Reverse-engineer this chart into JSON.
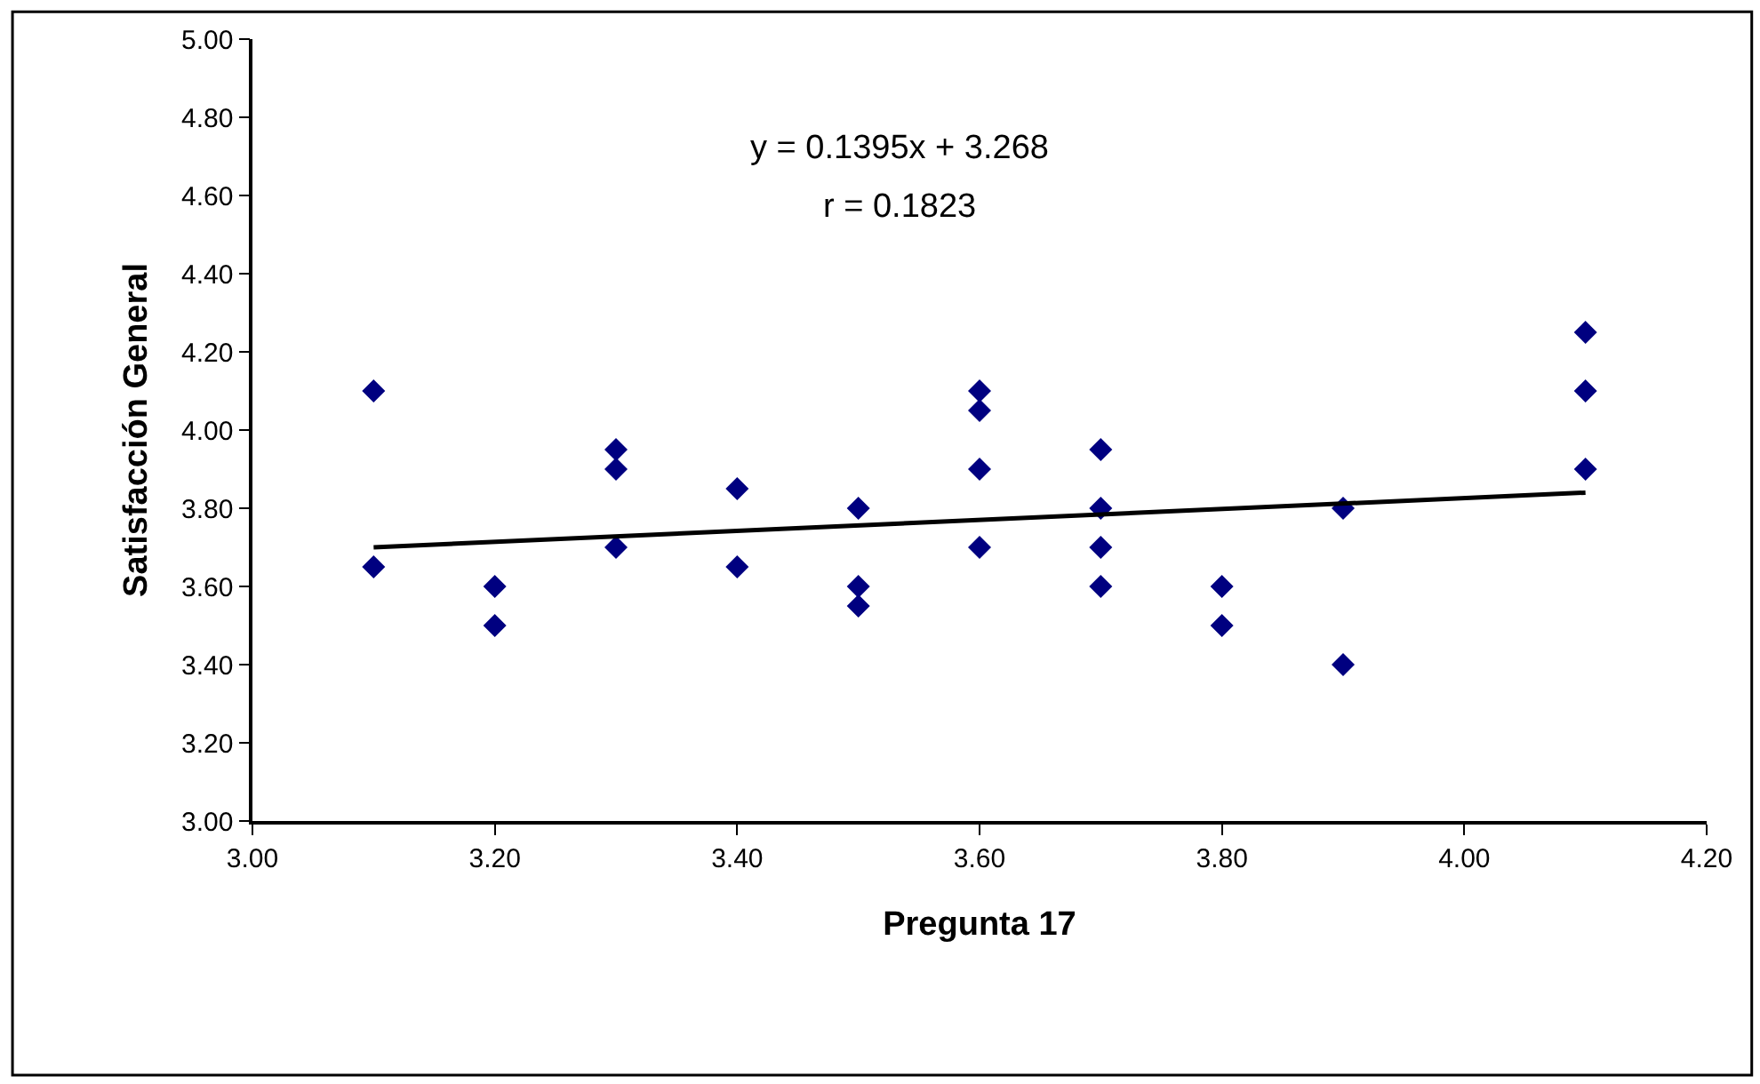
{
  "chart_data": {
    "type": "scatter",
    "xlabel": "Pregunta 17",
    "ylabel": "Satisfacción General",
    "annotations": [
      "y = 0.1395x + 3.268",
      "r = 0.1823"
    ],
    "series": [
      {
        "color": "#000080",
        "marker": "diamond",
        "x": [
          3.1,
          3.1,
          3.2,
          3.2,
          3.3,
          3.3,
          3.3,
          3.4,
          3.4,
          3.5,
          3.5,
          3.5,
          3.6,
          3.6,
          3.6,
          3.6,
          3.7,
          3.7,
          3.7,
          3.7,
          3.8,
          3.8,
          3.9,
          3.9,
          4.1,
          4.1,
          4.1
        ],
        "values": [
          4.1,
          3.65,
          3.6,
          3.5,
          3.95,
          3.9,
          3.7,
          3.85,
          3.65,
          3.8,
          3.6,
          3.55,
          4.1,
          4.05,
          3.9,
          3.7,
          3.95,
          3.8,
          3.7,
          3.6,
          3.6,
          3.5,
          3.8,
          3.4,
          4.25,
          4.1,
          3.9
        ]
      },
      {
        "type": "line",
        "color": "#000000",
        "marker": "none",
        "line_style": "solid",
        "x": [
          3.1,
          4.1
        ],
        "values": [
          3.7,
          3.84
        ]
      }
    ],
    "xlim": [
      3.0,
      4.2
    ],
    "xticks": [
      {
        "value": 3.0,
        "label": "3.00"
      },
      {
        "value": 3.2,
        "label": "3.20"
      },
      {
        "value": 3.4,
        "label": "3.40"
      },
      {
        "value": 3.6,
        "label": "3.60"
      },
      {
        "value": 3.8,
        "label": "3.80"
      },
      {
        "value": 4.0,
        "label": "4.00"
      },
      {
        "value": 4.2,
        "label": "4.20"
      }
    ],
    "ylim": [
      3.0,
      5.0
    ],
    "yticks": [
      {
        "value": 3.0,
        "label": "3.00"
      },
      {
        "value": 3.2,
        "label": "3.20"
      },
      {
        "value": 3.4,
        "label": "3.40"
      },
      {
        "value": 3.6,
        "label": "3.60"
      },
      {
        "value": 3.8,
        "label": "3.80"
      },
      {
        "value": 4.0,
        "label": "4.00"
      },
      {
        "value": 4.2,
        "label": "4.20"
      },
      {
        "value": 4.4,
        "label": "4.40"
      },
      {
        "value": 4.6,
        "label": "4.60"
      },
      {
        "value": 4.8,
        "label": "4.80"
      },
      {
        "value": 5.0,
        "label": "5.00"
      }
    ],
    "grid": false
  }
}
